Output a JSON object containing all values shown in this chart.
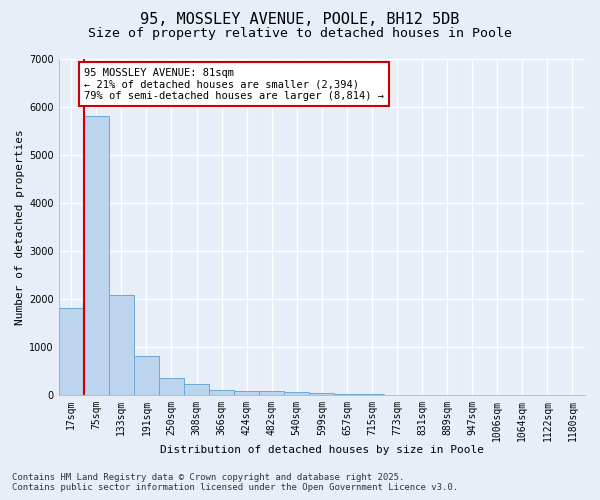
{
  "title": "95, MOSSLEY AVENUE, POOLE, BH12 5DB",
  "subtitle": "Size of property relative to detached houses in Poole",
  "xlabel": "Distribution of detached houses by size in Poole",
  "ylabel": "Number of detached properties",
  "categories": [
    "17sqm",
    "75sqm",
    "133sqm",
    "191sqm",
    "250sqm",
    "308sqm",
    "366sqm",
    "424sqm",
    "482sqm",
    "540sqm",
    "599sqm",
    "657sqm",
    "715sqm",
    "773sqm",
    "831sqm",
    "889sqm",
    "947sqm",
    "1006sqm",
    "1064sqm",
    "1122sqm",
    "1180sqm"
  ],
  "values": [
    1800,
    5820,
    2080,
    820,
    360,
    220,
    110,
    80,
    70,
    60,
    30,
    10,
    8,
    5,
    4,
    3,
    2,
    1,
    1,
    1,
    1
  ],
  "bar_color": "#bdd4ee",
  "bar_edgecolor": "#6aabd2",
  "ylim": [
    0,
    7000
  ],
  "yticks": [
    0,
    1000,
    2000,
    3000,
    4000,
    5000,
    6000,
    7000
  ],
  "red_line_x": 0.5,
  "annotation_title": "95 MOSSLEY AVENUE: 81sqm",
  "annotation_line1": "← 21% of detached houses are smaller (2,394)",
  "annotation_line2": "79% of semi-detached houses are larger (8,814) →",
  "annotation_box_facecolor": "#ffffff",
  "annotation_box_edgecolor": "#cc0000",
  "red_line_color": "#cc0000",
  "background_color": "#e8eef8",
  "grid_color": "#ffffff",
  "footer_line1": "Contains HM Land Registry data © Crown copyright and database right 2025.",
  "footer_line2": "Contains public sector information licensed under the Open Government Licence v3.0.",
  "title_fontsize": 11,
  "subtitle_fontsize": 9.5,
  "axis_label_fontsize": 8,
  "tick_fontsize": 7,
  "annotation_fontsize": 7.5,
  "footer_fontsize": 6.5
}
